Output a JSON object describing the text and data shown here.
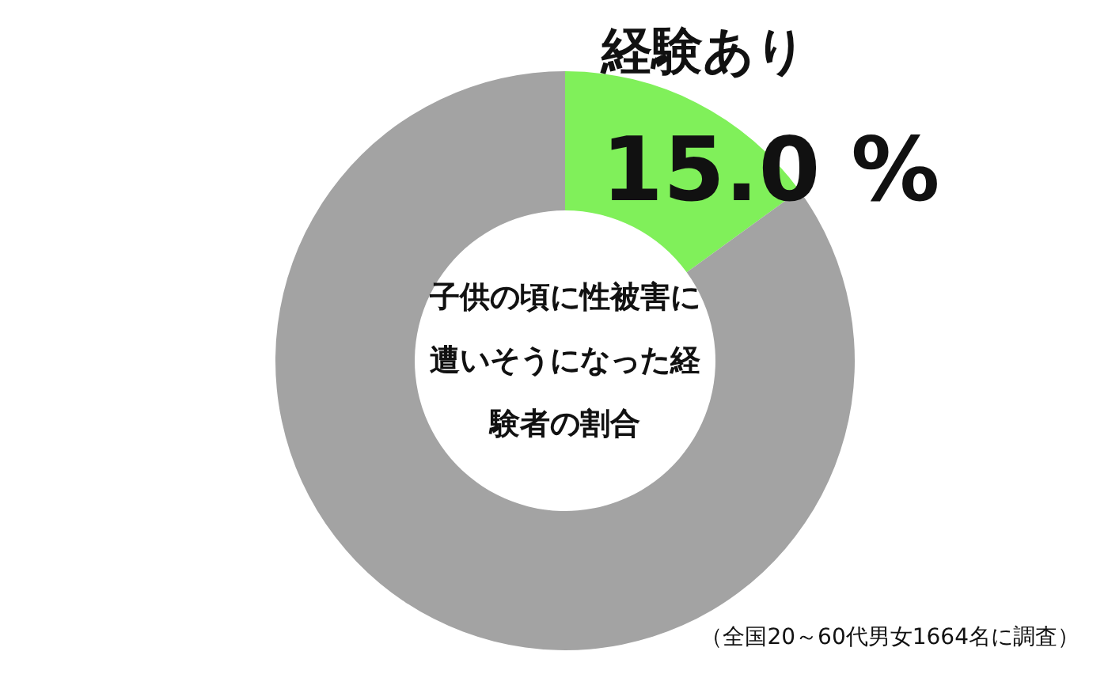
{
  "chart_data": {
    "type": "donut",
    "title": "子供の頃に性被害に遭いそうになった経験者の割合",
    "categories": [
      "経験あり",
      null
    ],
    "values": [
      15.0,
      85.0
    ],
    "colors": [
      "#80f05a",
      "#a3a3a3"
    ],
    "value_labels": [
      "15.0 %",
      null
    ],
    "legend": false,
    "annotations": [
      "（全国20～60代男女1664名に調査）"
    ]
  }
}
